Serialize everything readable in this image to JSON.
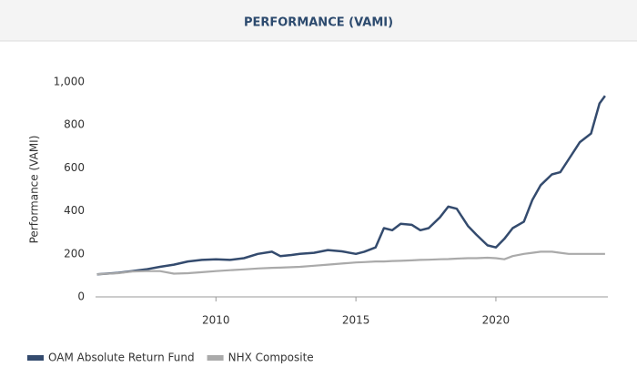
{
  "chart_data": {
    "type": "line",
    "title": "PERFORMANCE (VAMI)",
    "y_label": "Performance (VAMI)",
    "x": [
      2005.75,
      2006.5,
      2007,
      2007.5,
      2008,
      2008.5,
      2009,
      2009.5,
      2010,
      2010.5,
      2011,
      2011.5,
      2012,
      2012.3,
      2012.7,
      2013,
      2013.5,
      2014,
      2014.5,
      2015,
      2015.3,
      2015.7,
      2016,
      2016.3,
      2016.6,
      2017,
      2017.3,
      2017.6,
      2018,
      2018.3,
      2018.6,
      2019,
      2019.3,
      2019.7,
      2020,
      2020.3,
      2020.6,
      2021,
      2021.3,
      2021.6,
      2022,
      2022.3,
      2022.6,
      2023,
      2023.4,
      2023.7,
      2023.9
    ],
    "series": [
      {
        "name": "OAM Absolute Return Fund",
        "color": "#344b6e",
        "values": [
          105,
          112,
          120,
          128,
          140,
          150,
          165,
          172,
          175,
          172,
          180,
          200,
          210,
          190,
          195,
          200,
          205,
          218,
          212,
          200,
          210,
          230,
          320,
          310,
          340,
          335,
          310,
          320,
          370,
          420,
          410,
          330,
          290,
          240,
          230,
          270,
          320,
          350,
          450,
          520,
          570,
          580,
          640,
          720,
          760,
          900,
          935
        ]
      },
      {
        "name": "NHX Composite",
        "color": "#aaaaaa",
        "values": [
          105,
          110,
          118,
          120,
          120,
          108,
          110,
          115,
          120,
          124,
          128,
          132,
          135,
          136,
          138,
          140,
          145,
          150,
          155,
          160,
          162,
          165,
          165,
          167,
          168,
          170,
          172,
          173,
          175,
          176,
          178,
          180,
          180,
          182,
          180,
          175,
          190,
          200,
          205,
          210,
          210,
          205,
          200,
          200,
          200,
          200,
          200
        ]
      }
    ],
    "xlim": [
      2005.7,
      2024.0
    ],
    "xticks": [
      2010,
      2015,
      2020
    ],
    "ylim": [
      0,
      1000
    ],
    "yticks": [
      0,
      200,
      400,
      600,
      800,
      {
        "value": 1000,
        "label": "1,000"
      }
    ],
    "grid": false,
    "legend": "bottom-left"
  }
}
